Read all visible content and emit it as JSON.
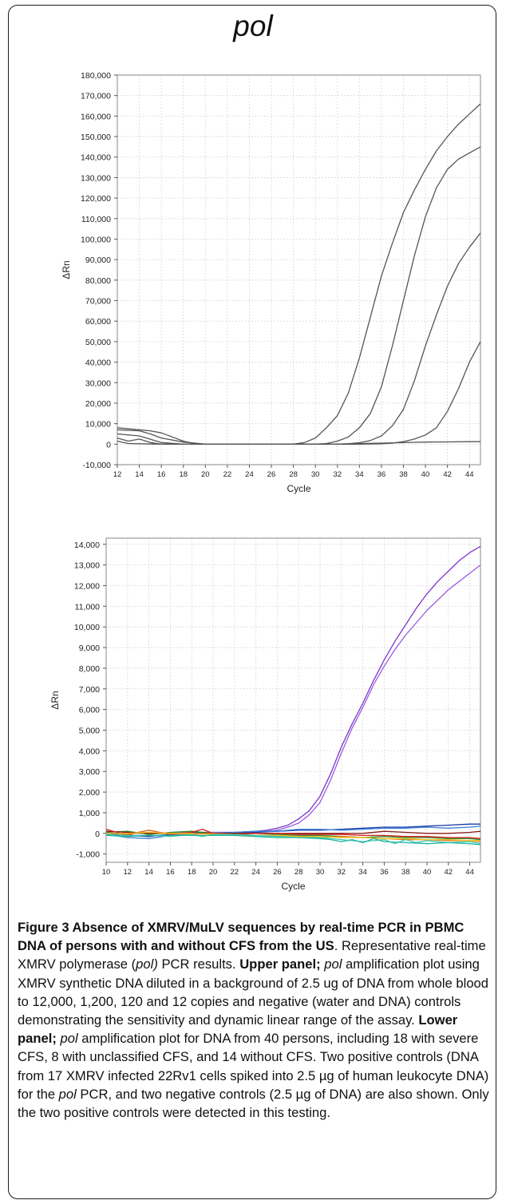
{
  "header": {
    "gene": "pol"
  },
  "charts": [
    {
      "id": "upper",
      "type": "line",
      "xlabel": "Cycle",
      "ylabel": "ΔRn",
      "xlim": [
        12,
        45
      ],
      "ylim": [
        -10000,
        180000
      ],
      "xticks": [
        12,
        14,
        16,
        18,
        20,
        22,
        24,
        26,
        28,
        30,
        32,
        34,
        36,
        38,
        40,
        42,
        44
      ],
      "yticks": [
        -10000,
        0,
        10000,
        20000,
        30000,
        40000,
        50000,
        60000,
        70000,
        80000,
        90000,
        100000,
        110000,
        120000,
        130000,
        140000,
        150000,
        160000,
        170000,
        180000
      ],
      "tick_labels": {
        "-10000": "-10,000"
      },
      "grid": true,
      "series": [
        {
          "color": "#555555",
          "x": [
            12,
            14,
            15,
            16,
            17,
            18,
            19,
            20,
            22,
            24,
            26,
            28,
            29,
            30,
            31,
            32,
            33,
            34,
            35,
            36,
            37,
            38,
            39,
            40,
            41,
            42,
            43,
            44,
            45
          ],
          "y": [
            8000,
            7000,
            6500,
            5500,
            3500,
            1500,
            300,
            0,
            0,
            0,
            0,
            0,
            800,
            3000,
            8000,
            14000,
            25000,
            42000,
            62000,
            82000,
            98000,
            113000,
            124000,
            134000,
            143000,
            150000,
            156000,
            161000,
            166000
          ]
        },
        {
          "color": "#555555",
          "x": [
            12,
            14,
            15,
            16,
            18,
            20,
            22,
            24,
            26,
            28,
            30,
            31,
            32,
            33,
            34,
            35,
            36,
            37,
            38,
            39,
            40,
            41,
            42,
            43,
            44,
            45
          ],
          "y": [
            7000,
            6500,
            5000,
            3000,
            1000,
            0,
            0,
            0,
            0,
            0,
            0,
            300,
            1500,
            3500,
            8000,
            15000,
            28000,
            48000,
            70000,
            92000,
            111000,
            125000,
            134000,
            139000,
            142000,
            145000
          ]
        },
        {
          "color": "#555555",
          "x": [
            12,
            14,
            16,
            18,
            20,
            22,
            24,
            26,
            28,
            30,
            32,
            33,
            34,
            35,
            36,
            37,
            38,
            39,
            40,
            41,
            42,
            43,
            44,
            45
          ],
          "y": [
            5000,
            4000,
            800,
            0,
            0,
            0,
            0,
            0,
            0,
            0,
            0,
            200,
            700,
            1800,
            4000,
            9000,
            17000,
            31000,
            48000,
            63000,
            77000,
            88000,
            96000,
            103000
          ]
        },
        {
          "color": "#555555",
          "x": [
            12,
            13,
            14,
            15,
            16,
            18,
            20,
            22,
            24,
            26,
            28,
            30,
            32,
            34,
            36,
            37,
            38,
            39,
            40,
            41,
            42,
            43,
            44,
            45
          ],
          "y": [
            3000,
            1500,
            2500,
            800,
            0,
            0,
            0,
            0,
            0,
            0,
            0,
            0,
            0,
            0,
            200,
            500,
            1200,
            2500,
            4500,
            8000,
            16000,
            27000,
            40000,
            50000
          ]
        },
        {
          "color": "#555555",
          "x": [
            12,
            13,
            14,
            16,
            18,
            20,
            22,
            24,
            26,
            28,
            30,
            32,
            34,
            36,
            38,
            40,
            42,
            44,
            45
          ],
          "y": [
            1500,
            300,
            200,
            0,
            0,
            0,
            0,
            0,
            0,
            0,
            0,
            0,
            300,
            500,
            800,
            1000,
            1100,
            1200,
            1200
          ]
        }
      ]
    },
    {
      "id": "lower",
      "type": "line",
      "xlabel": "Cycle",
      "ylabel": "ΔRn",
      "xlim": [
        10,
        45
      ],
      "ylim": [
        -1400,
        14300
      ],
      "xticks": [
        10,
        12,
        14,
        16,
        18,
        20,
        22,
        24,
        26,
        28,
        30,
        32,
        34,
        36,
        38,
        40,
        42,
        44
      ],
      "yticks": [
        -1000,
        0,
        1000,
        2000,
        3000,
        4000,
        5000,
        6000,
        7000,
        8000,
        9000,
        10000,
        11000,
        12000,
        13000,
        14000
      ],
      "tick_labels": {
        "-1000": "-1,000"
      },
      "grid": true,
      "series": [
        {
          "color": "#7a35c8",
          "x": [
            10,
            12,
            14,
            16,
            18,
            20,
            22,
            24,
            25,
            26,
            27,
            28,
            29,
            30,
            31,
            32,
            33,
            34,
            35,
            36,
            37,
            38,
            39,
            40,
            41,
            42,
            43,
            44,
            45
          ],
          "y": [
            0,
            0,
            0,
            0,
            50,
            50,
            50,
            100,
            150,
            250,
            400,
            700,
            1100,
            1800,
            2900,
            4200,
            5300,
            6300,
            7400,
            8400,
            9300,
            10100,
            10900,
            11600,
            12200,
            12700,
            13200,
            13600,
            13900
          ]
        },
        {
          "color": "#9a5ae0",
          "x": [
            10,
            12,
            14,
            16,
            18,
            20,
            22,
            24,
            25,
            26,
            27,
            28,
            29,
            30,
            31,
            32,
            33,
            34,
            35,
            36,
            37,
            38,
            39,
            40,
            41,
            42,
            43,
            44,
            45
          ],
          "y": [
            0,
            0,
            0,
            0,
            50,
            50,
            50,
            50,
            100,
            150,
            300,
            500,
            900,
            1500,
            2600,
            3900,
            5100,
            6100,
            7200,
            8100,
            8900,
            9600,
            10200,
            10800,
            11300,
            11800,
            12200,
            12600,
            13000
          ]
        },
        {
          "color": "#1f3aa5",
          "x": [
            10,
            12,
            14,
            16,
            18,
            20,
            22,
            24,
            26,
            28,
            30,
            32,
            34,
            36,
            38,
            40,
            42,
            44,
            45
          ],
          "y": [
            0,
            -100,
            -150,
            -50,
            50,
            0,
            50,
            50,
            100,
            150,
            150,
            200,
            250,
            300,
            300,
            350,
            400,
            450,
            450
          ]
        },
        {
          "color": "#3a7fd5",
          "x": [
            10,
            12,
            14,
            16,
            18,
            20,
            22,
            24,
            26,
            28,
            30,
            32,
            34,
            36,
            38,
            40,
            42,
            44,
            45
          ],
          "y": [
            -50,
            -200,
            -250,
            -100,
            0,
            0,
            50,
            100,
            100,
            200,
            200,
            150,
            200,
            250,
            250,
            300,
            250,
            300,
            350
          ]
        },
        {
          "color": "#2a8a2a",
          "x": [
            10,
            12,
            14,
            16,
            18,
            20,
            22,
            24,
            26,
            28,
            30,
            32,
            34,
            36,
            38,
            40,
            42,
            44,
            45
          ],
          "y": [
            50,
            100,
            -50,
            50,
            100,
            0,
            0,
            0,
            -50,
            -100,
            -100,
            -150,
            -200,
            -150,
            -200,
            -200,
            -250,
            -250,
            -300
          ]
        },
        {
          "color": "#8a1a1a",
          "x": [
            10,
            12,
            14,
            16,
            18,
            20,
            22,
            24,
            26,
            28,
            30,
            32,
            34,
            36,
            38,
            40,
            42,
            44,
            45
          ],
          "y": [
            100,
            50,
            0,
            0,
            0,
            0,
            0,
            0,
            0,
            0,
            0,
            0,
            0,
            100,
            50,
            0,
            0,
            50,
            100
          ]
        },
        {
          "color": "#d62020",
          "x": [
            10,
            12,
            13,
            14,
            16,
            18,
            19,
            20,
            22,
            24,
            26,
            28,
            30,
            32,
            34,
            36,
            38,
            40,
            42,
            44,
            45
          ],
          "y": [
            200,
            -100,
            50,
            150,
            -50,
            50,
            200,
            0,
            -50,
            0,
            0,
            -50,
            -50,
            -50,
            -100,
            -100,
            -150,
            -150,
            -200,
            -200,
            -250
          ]
        },
        {
          "color": "#e07010",
          "x": [
            10,
            12,
            14,
            15,
            16,
            18,
            20,
            22,
            24,
            26,
            28,
            30,
            32,
            34,
            36,
            38,
            40,
            42,
            44,
            45
          ],
          "y": [
            -100,
            -50,
            150,
            50,
            0,
            -50,
            0,
            -50,
            -100,
            -100,
            -150,
            -200,
            -150,
            -200,
            -250,
            -300,
            -300,
            -350,
            -350,
            -400
          ]
        },
        {
          "color": "#f0c020",
          "x": [
            10,
            12,
            14,
            16,
            18,
            20,
            22,
            24,
            26,
            28,
            30,
            32,
            34,
            36,
            38,
            40,
            42,
            44,
            45
          ],
          "y": [
            0,
            0,
            50,
            0,
            0,
            -50,
            -50,
            -100,
            -100,
            -150,
            -150,
            -200,
            -200,
            -250,
            -250,
            -300,
            -300,
            -350,
            -350
          ]
        },
        {
          "color": "#40c8b0",
          "x": [
            10,
            12,
            14,
            16,
            18,
            19,
            20,
            22,
            24,
            26,
            28,
            30,
            32,
            34,
            36,
            37,
            38,
            39,
            40,
            42,
            44,
            45
          ],
          "y": [
            -50,
            -100,
            -100,
            -150,
            -50,
            -150,
            -50,
            -50,
            -100,
            -150,
            -200,
            -200,
            -300,
            -400,
            -300,
            -500,
            -300,
            -450,
            -350,
            -450,
            -400,
            -500
          ]
        },
        {
          "color": "#1fb5a0",
          "x": [
            10,
            12,
            14,
            16,
            18,
            20,
            22,
            24,
            26,
            28,
            30,
            31,
            32,
            33,
            34,
            35,
            36,
            38,
            40,
            42,
            44,
            45
          ],
          "y": [
            -100,
            -150,
            -100,
            -100,
            -100,
            -100,
            -100,
            -150,
            -200,
            -200,
            -250,
            -300,
            -400,
            -300,
            -450,
            -250,
            -400,
            -450,
            -500,
            -450,
            -500,
            -550
          ]
        }
      ]
    }
  ],
  "caption": {
    "title": "Figure 3 Absence of XMRV/MuLV sequences by real-time PCR in PBMC DNA of persons with and without CFS from the US",
    "title_end": ".",
    "p1": "Representative real-time XMRV polymerase (",
    "p1_pol": "pol)",
    "p1_end": " PCR results. ",
    "upper_label": "Upper panel;",
    "upper_pol": " pol",
    "upper_text": " amplification plot using XMRV synthetic DNA diluted in a background of 2.5 ug of DNA from whole blood to 12,000, 1,200, 120 and 12 copies and negative (water and DNA) controls demonstrating the sensitivity and dynamic linear range of the assay. ",
    "lower_label": "Lower panel;",
    "lower_pol": " pol",
    "lower_text": " amplification plot for DNA from 40 persons, including 18 with severe CFS, 8 with unclassified CFS, and 14 without CFS. Two positive controls (DNA from 17 XMRV infected 22Rv1 cells spiked into 2.5 µg of human leukocyte DNA) for the ",
    "lower_pol2": "pol",
    "lower_text2": " PCR, and two negative controls (2.5 µg of DNA) are also shown. Only the two positive controls were detected in this testing."
  }
}
